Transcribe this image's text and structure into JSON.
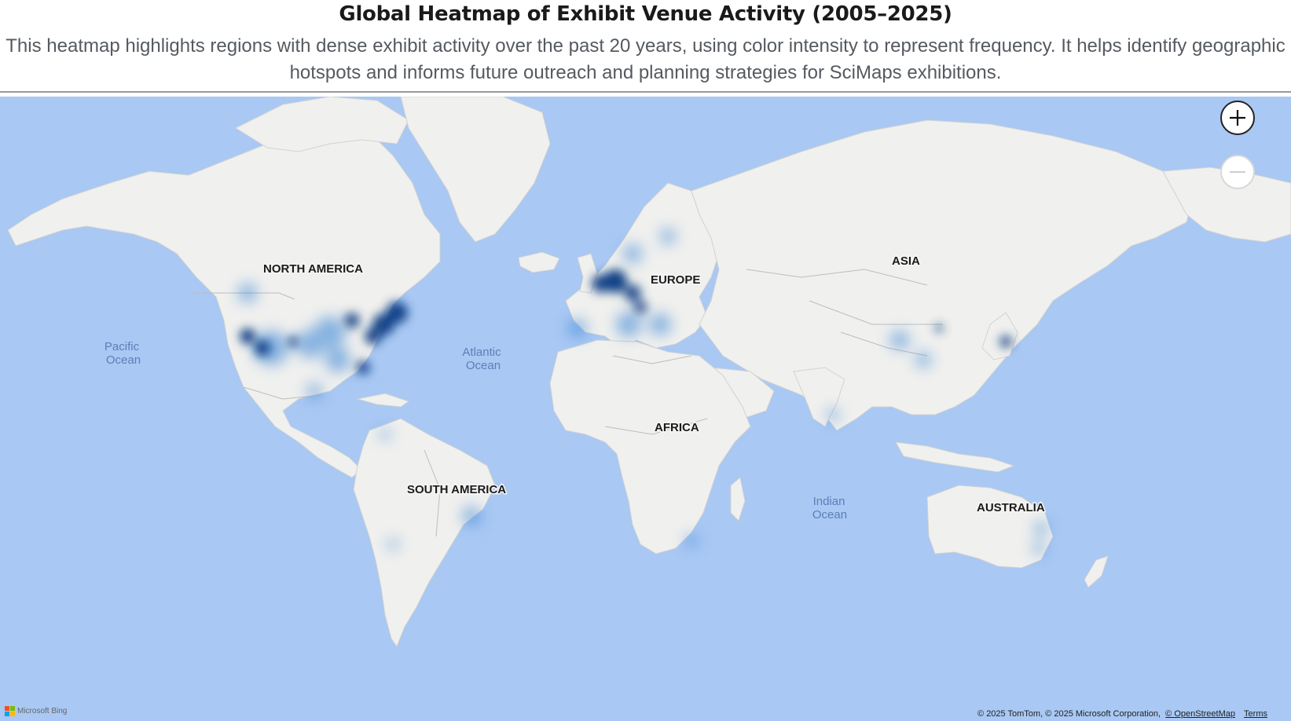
{
  "header": {
    "title": "Global Heatmap of Exhibit Venue Activity (2005–2025)",
    "subtitle": "This heatmap highlights regions with dense exhibit activity over the past 20 years, using color intensity to represent frequency. It helps identify geographic hotspots and informs future outreach and planning strategies for SciMaps exhibitions."
  },
  "map": {
    "continent_labels": {
      "north_america": "NORTH AMERICA",
      "south_america": "SOUTH AMERICA",
      "europe": "EUROPE",
      "africa": "AFRICA",
      "asia": "ASIA",
      "australia": "AUSTRALIA"
    },
    "ocean_labels": {
      "pacific_line1": "Pacific",
      "pacific_line2": "Ocean",
      "atlantic_line1": "Atlantic",
      "atlantic_line2": "Ocean",
      "indian_line1": "Indian",
      "indian_line2": "Ocean"
    },
    "colors": {
      "water": "#a9c8f3",
      "land": "#f0f0ee",
      "heat_dark": "#0a2f66",
      "heat_light": "#2d7fd6"
    },
    "controls": {
      "zoom_in_icon": "plus-icon",
      "zoom_out_icon": "minus-icon"
    },
    "attribution": {
      "text": "© 2025 TomTom, © 2025 Microsoft Corporation,",
      "osm_link": "© OpenStreetMap",
      "terms_link": "Terms"
    },
    "logo": {
      "text": "Microsoft Bing",
      "icon": "microsoft-logo-icon"
    }
  }
}
